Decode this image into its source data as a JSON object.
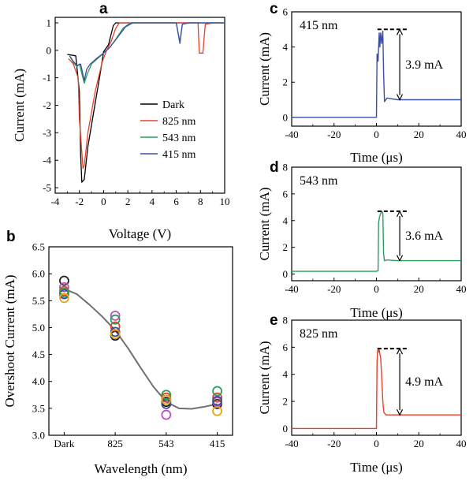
{
  "panels": {
    "a": {
      "letter": "a"
    },
    "b": {
      "letter": "b"
    },
    "c": {
      "letter": "c"
    },
    "d": {
      "letter": "d"
    },
    "e": {
      "letter": "e"
    }
  },
  "chart_data": [
    {
      "id": "a",
      "type": "line",
      "xlabel": "Voltage (V)",
      "ylabel": "Current (mA)",
      "xlim": [
        -4,
        10
      ],
      "ylim": [
        -5.2,
        1.2
      ],
      "xticks": [
        -4,
        -2,
        0,
        2,
        4,
        6,
        8,
        10
      ],
      "yticks": [
        -5,
        -4,
        -3,
        -2,
        -1,
        0,
        1
      ],
      "legend_position": "center-right",
      "series": [
        {
          "name": "Dark",
          "color": "#000000",
          "x": [
            -3.0,
            -2.3,
            -2.0,
            -1.9,
            -1.8,
            -1.6,
            -1.3,
            -0.8,
            -0.3,
            0.0,
            0.4,
            0.8,
            1.0,
            2.0,
            4.0,
            6.0,
            7.5,
            8.0,
            8.2,
            8.5,
            9.0,
            10.0
          ],
          "y": [
            -0.15,
            -0.2,
            -1.5,
            -3.8,
            -4.8,
            -4.7,
            -3.5,
            -2.2,
            -0.9,
            -0.05,
            0.2,
            0.9,
            1.0,
            1.0,
            1.0,
            1.0,
            1.0,
            1.0,
            1.0,
            1.0,
            1.0,
            1.0
          ]
        },
        {
          "name": "825 nm",
          "color": "#e8412b",
          "x": [
            -2.9,
            -2.5,
            -2.1,
            -2.0,
            -1.7,
            -1.6,
            -1.3,
            -0.7,
            -0.1,
            0.2,
            0.6,
            1.0,
            1.3,
            3.0,
            5.0,
            7.0,
            7.8,
            7.9,
            8.2,
            8.4,
            9.0,
            10.0
          ],
          "y": [
            -0.3,
            -0.5,
            -1.0,
            -2.5,
            -4.3,
            -4.2,
            -3.0,
            -1.5,
            -0.4,
            -0.05,
            0.3,
            0.8,
            1.0,
            1.0,
            1.0,
            1.0,
            1.0,
            -0.1,
            -0.1,
            0.95,
            1.0,
            1.0
          ]
        },
        {
          "name": "543 nm",
          "color": "#2a9d5c",
          "x": [
            -2.8,
            -2.5,
            -2.2,
            -2.0,
            -1.6,
            -1.3,
            -1.0,
            -0.5,
            0.0,
            0.5,
            1.0,
            1.6,
            2.2,
            3.0,
            4.5,
            6.0,
            6.3,
            6.5,
            7.0,
            8.0,
            9.0,
            10.0
          ],
          "y": [
            -0.2,
            -0.45,
            -0.6,
            -0.5,
            -1.2,
            -0.8,
            -0.5,
            -0.3,
            -0.1,
            0.1,
            0.4,
            0.8,
            1.0,
            1.0,
            1.0,
            1.0,
            0.3,
            0.95,
            1.0,
            1.0,
            1.0,
            1.0
          ]
        },
        {
          "name": "415 nm",
          "color": "#3b4fa0",
          "x": [
            -2.8,
            -2.5,
            -2.2,
            -1.9,
            -1.6,
            -1.4,
            -1.1,
            -0.6,
            0.0,
            0.5,
            1.2,
            1.8,
            2.4,
            3.5,
            5.0,
            6.0,
            6.3,
            6.5,
            7.0,
            8.0,
            9.0,
            10.0
          ],
          "y": [
            -0.2,
            -0.4,
            -0.55,
            -0.5,
            -1.1,
            -0.7,
            -0.5,
            -0.3,
            -0.1,
            0.1,
            0.5,
            0.85,
            1.0,
            1.0,
            1.0,
            1.0,
            0.25,
            0.95,
            1.0,
            1.0,
            1.0,
            1.0
          ]
        }
      ]
    },
    {
      "id": "b",
      "type": "scatter",
      "xlabel": "Wavelength (nm)",
      "ylabel": "Overshoot Current (mA)",
      "categories": [
        "Dark",
        "825",
        "543",
        "415"
      ],
      "ylim": [
        3.0,
        6.5
      ],
      "yticks": [
        "3.0",
        "3.5",
        "4.0",
        "4.5",
        "5.0",
        "5.5",
        "6.0",
        "6.5"
      ],
      "fit_color": "#707070",
      "fit_curve": {
        "x": [
          0,
          0.25,
          0.5,
          0.75,
          1.0,
          1.25,
          1.5,
          1.75,
          2.0,
          2.25,
          2.5,
          2.75,
          3.0
        ],
        "y": [
          5.72,
          5.62,
          5.42,
          5.2,
          4.95,
          4.62,
          4.25,
          3.9,
          3.62,
          3.5,
          3.49,
          3.53,
          3.58
        ]
      },
      "series": [
        {
          "color": "#222222",
          "values": [
            5.87,
            4.85,
            3.62,
            3.58
          ]
        },
        {
          "color": "#c04fc0",
          "values": [
            5.75,
            5.22,
            3.38,
            3.62
          ]
        },
        {
          "color": "#e8412b",
          "values": [
            5.68,
            5.02,
            3.7,
            3.7
          ]
        },
        {
          "color": "#3b4fa0",
          "values": [
            5.62,
            4.92,
            3.58,
            3.64
          ]
        },
        {
          "color": "#2a9d5c",
          "values": [
            5.65,
            5.15,
            3.75,
            3.82
          ]
        },
        {
          "color": "#e8a11a",
          "values": [
            5.55,
            4.88,
            3.66,
            3.45
          ]
        }
      ]
    },
    {
      "id": "c",
      "type": "line",
      "color": "#3b4fa0",
      "inset_label": "415 nm",
      "annotation": "3.9 mA",
      "xlabel": "Time (μs)",
      "ylabel": "Current (mA)",
      "xlim": [
        -40,
        40
      ],
      "ylim": [
        -0.5,
        6
      ],
      "xticks": [
        -40,
        -20,
        0,
        20,
        40
      ],
      "yticks": [
        0,
        2,
        4,
        6
      ],
      "peak": 5.0,
      "baseline": 1.0,
      "x": [
        -40,
        0.0,
        0.3,
        0.8,
        1.0,
        1.3,
        1.6,
        2.0,
        2.5,
        3.0,
        3.4,
        3.8,
        5.0,
        10,
        20,
        30,
        40
      ],
      "y": [
        0.0,
        0.0,
        3.6,
        3.2,
        3.9,
        4.8,
        4.0,
        4.8,
        4.2,
        4.9,
        2.5,
        0.9,
        1.1,
        1.0,
        1.0,
        1.0,
        1.0
      ]
    },
    {
      "id": "d",
      "type": "line",
      "color": "#2a9d5c",
      "inset_label": "543 nm",
      "annotation": "3.6 mA",
      "xlabel": "Time (μs)",
      "ylabel": "Current (mA)",
      "xlim": [
        -40,
        40
      ],
      "ylim": [
        -0.5,
        8
      ],
      "xticks": [
        -40,
        -20,
        0,
        20,
        40
      ],
      "yticks": [
        0,
        2,
        4,
        6,
        8
      ],
      "peak": 4.7,
      "baseline": 1.0,
      "x": [
        -40,
        0.0,
        0.8,
        1.0,
        1.5,
        2.5,
        3.0,
        3.4,
        3.8,
        5.0,
        10,
        20,
        30,
        40
      ],
      "y": [
        0.2,
        0.2,
        0.25,
        3.8,
        4.3,
        4.7,
        4.6,
        1.5,
        1.0,
        1.05,
        1.0,
        1.0,
        1.0,
        1.0
      ]
    },
    {
      "id": "e",
      "type": "line",
      "color": "#e8412b",
      "inset_label": "825 nm",
      "annotation": "4.9 mA",
      "xlabel": "Time (μs)",
      "ylabel": "Current (mA)",
      "xlim": [
        -40,
        40
      ],
      "ylim": [
        -0.5,
        8
      ],
      "xticks": [
        -40,
        -20,
        0,
        20,
        40
      ],
      "yticks": [
        0,
        2,
        4,
        6,
        8
      ],
      "peak": 5.9,
      "baseline": 1.0,
      "x": [
        -40,
        0.0,
        0.3,
        0.6,
        0.8,
        1.2,
        2.0,
        2.6,
        3.0,
        3.5,
        4.5,
        10,
        20,
        30,
        40
      ],
      "y": [
        0.0,
        0.0,
        5.0,
        5.8,
        5.6,
        5.9,
        5.2,
        3.5,
        2.0,
        1.2,
        1.0,
        1.0,
        1.0,
        1.0,
        1.0
      ]
    }
  ]
}
